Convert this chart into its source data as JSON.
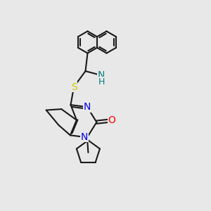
{
  "bg_color": "#e8e8e8",
  "bond_color": "#1a1a1a",
  "bond_width": 1.5,
  "N_color": "#0000ee",
  "O_color": "#ff0000",
  "S_color": "#cccc00",
  "NH_color": "#008080",
  "font_size": 10,
  "fig_size": [
    3.0,
    3.0
  ],
  "dpi": 100,
  "xlim": [
    0,
    10
  ],
  "ylim": [
    0,
    10
  ]
}
